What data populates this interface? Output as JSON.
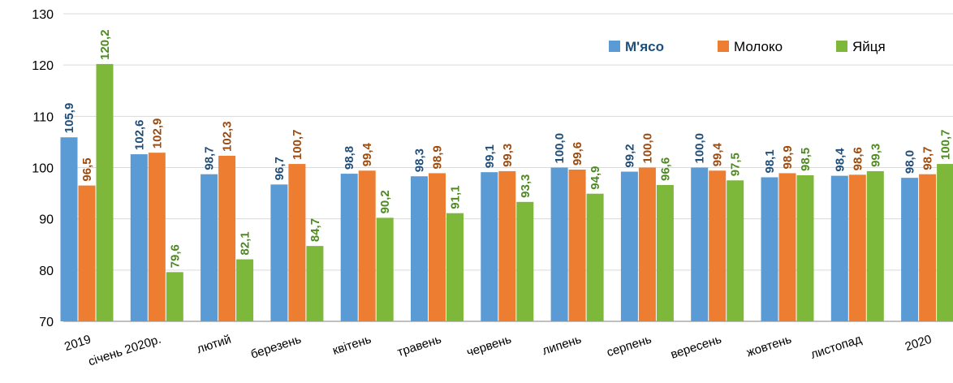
{
  "chart_data": {
    "type": "bar",
    "categories": [
      "2019",
      "січень 2020р.",
      "лютий",
      "березень",
      "квітень",
      "травень",
      "червень",
      "липень",
      "серпень",
      "вересень",
      "жовтень",
      "листопад",
      "2020"
    ],
    "series": [
      {
        "name": "М'ясо",
        "color": "#5B9BD5",
        "label_color": "#1F4E79",
        "values": [
          105.9,
          102.6,
          98.7,
          96.7,
          98.8,
          98.3,
          99.1,
          100.0,
          99.2,
          100.0,
          98.1,
          98.4,
          98.0
        ]
      },
      {
        "name": "Молоко",
        "color": "#ED7D31",
        "label_color": "#9C4A0E",
        "values": [
          96.5,
          102.9,
          102.3,
          100.7,
          99.4,
          98.9,
          99.3,
          99.6,
          100.0,
          99.4,
          98.9,
          98.6,
          98.7
        ]
      },
      {
        "name": "Яйця",
        "color": "#7DB83A",
        "label_color": "#4E8A22",
        "values": [
          120.2,
          79.6,
          82.1,
          84.7,
          90.2,
          91.1,
          93.3,
          94.9,
          96.6,
          97.5,
          98.5,
          99.3,
          100.7
        ]
      }
    ],
    "data_labels": [
      [
        "105,9",
        "102,6",
        "98,7",
        "96,7",
        "98,8",
        "98,3",
        "99,1",
        "100,0",
        "99,2",
        "100,0",
        "98,1",
        "98,4",
        "98,0"
      ],
      [
        "96,5",
        "102,9",
        "102,3",
        "100,7",
        "99,4",
        "98,9",
        "99,3",
        "99,6",
        "100,0",
        "99,4",
        "98,9",
        "98,6",
        "98,7"
      ],
      [
        "120,2",
        "79,6",
        "82,1",
        "84,7",
        "90,2",
        "91,1",
        "93,3",
        "94,9",
        "96,6",
        "97,5",
        "98,5",
        "99,3",
        "100,7"
      ]
    ],
    "y_ticks": [
      "70",
      "80",
      "90",
      "100",
      "110",
      "120",
      "130"
    ],
    "ylim": [
      70,
      130
    ],
    "grid": true,
    "legend_position": "top-right",
    "title": "",
    "xlabel": "",
    "ylabel": ""
  }
}
